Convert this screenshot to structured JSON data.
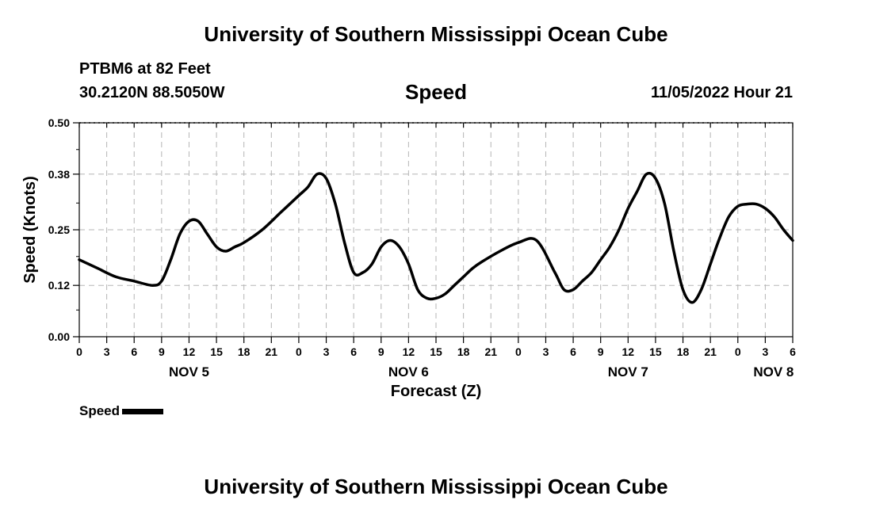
{
  "header": {
    "title_top": "University of Southern Mississippi Ocean Cube",
    "station": "PTBM6 at 82 Feet",
    "coords": "30.2120N  88.5050W",
    "center": "Speed",
    "datetime": "11/05/2022 Hour 21"
  },
  "footer": {
    "title_bottom": "University of Southern Mississippi Ocean Cube"
  },
  "chart_data": {
    "type": "line",
    "ylabel": "Speed (Knots)",
    "xlabel": "Forecast (Z)",
    "ylim": [
      0,
      0.5
    ],
    "yticks": [
      "0.00",
      "0.12",
      "0.25",
      "0.38",
      "0.50"
    ],
    "xticks": [
      "0",
      "3",
      "6",
      "9",
      "12",
      "15",
      "18",
      "21",
      "0",
      "3",
      "6",
      "9",
      "12",
      "15",
      "18",
      "21",
      "0",
      "3",
      "6",
      "9",
      "12",
      "15",
      "18",
      "21",
      "0",
      "3",
      "6"
    ],
    "day_labels": [
      "NOV 5",
      "NOV 6",
      "NOV 7",
      "NOV 8"
    ],
    "grid": true,
    "legend": "bottom-left",
    "series": [
      {
        "name": "Speed",
        "color": "#000000",
        "x": [
          0,
          2,
          4,
          6,
          8,
          9,
          10,
          11,
          12,
          13,
          14,
          15,
          16,
          17,
          18,
          20,
          22,
          24,
          25,
          26,
          27,
          28,
          29,
          30,
          31,
          32,
          33,
          34,
          35,
          36,
          37,
          38,
          39,
          40,
          41,
          42,
          43,
          44,
          46,
          48,
          50,
          52,
          53,
          54,
          55,
          56,
          57,
          58,
          59,
          60,
          61,
          62,
          63,
          64,
          65,
          66,
          67,
          68,
          69,
          70,
          71,
          72,
          73,
          74,
          75,
          76,
          77,
          78
        ],
        "values": [
          0.18,
          0.16,
          0.14,
          0.13,
          0.12,
          0.13,
          0.18,
          0.24,
          0.27,
          0.27,
          0.24,
          0.21,
          0.2,
          0.21,
          0.22,
          0.25,
          0.29,
          0.33,
          0.35,
          0.38,
          0.37,
          0.31,
          0.22,
          0.15,
          0.15,
          0.17,
          0.21,
          0.225,
          0.21,
          0.17,
          0.11,
          0.09,
          0.09,
          0.1,
          0.12,
          0.14,
          0.16,
          0.175,
          0.2,
          0.22,
          0.225,
          0.15,
          0.11,
          0.11,
          0.13,
          0.15,
          0.18,
          0.21,
          0.25,
          0.3,
          0.34,
          0.38,
          0.37,
          0.31,
          0.2,
          0.11,
          0.08,
          0.11,
          0.17,
          0.23,
          0.28,
          0.305,
          0.31,
          0.31,
          0.3,
          0.28,
          0.25,
          0.225
        ]
      }
    ]
  }
}
